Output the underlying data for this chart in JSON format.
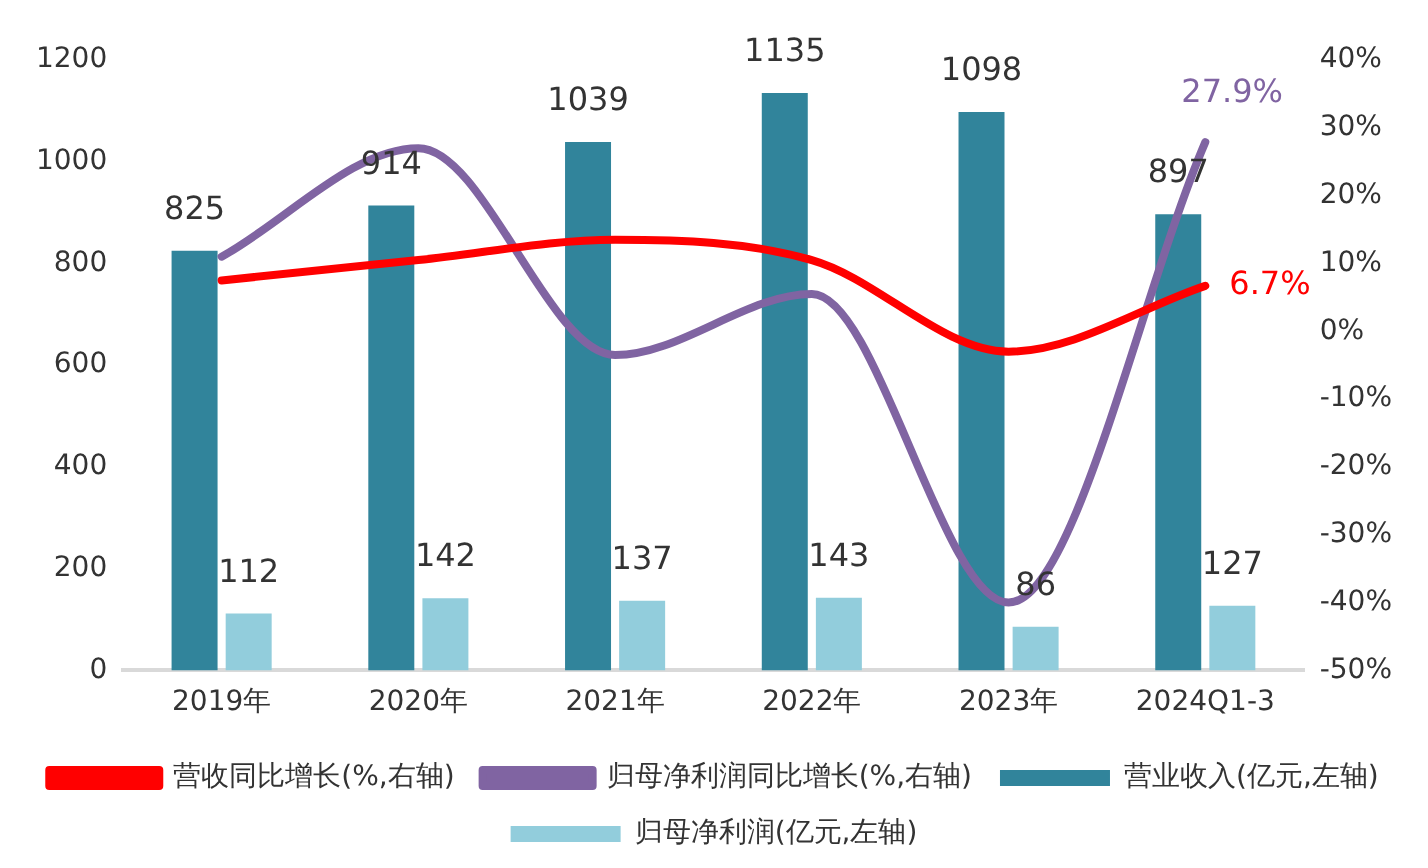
{
  "chart_data": {
    "type": "bar",
    "categories": [
      "2019年",
      "2020年",
      "2021年",
      "2022年",
      "2023年",
      "2024Q1-3"
    ],
    "series": [
      {
        "name": "营业收入(亿元,左轴)",
        "color": "#31849b",
        "values": [
          825,
          914,
          1039,
          1135,
          1098,
          897
        ],
        "value_labels": [
          "825",
          "914",
          "1039",
          "1135",
          "1098",
          "897"
        ]
      },
      {
        "name": "归母净利润(亿元,左轴)",
        "color": "#92cddc",
        "values": [
          112,
          142,
          137,
          143,
          86,
          127
        ],
        "value_labels": [
          "112",
          "142",
          "137",
          "143",
          "86",
          "127"
        ]
      },
      {
        "name": "营收同比增长(%,右轴)",
        "type": "line",
        "axis": "y2",
        "color": "#ff0000",
        "values": [
          7.5,
          10.5,
          13.5,
          10.5,
          -3,
          6.7
        ],
        "value_labels": [
          null,
          null,
          null,
          null,
          null,
          "6.7%"
        ]
      },
      {
        "name": "归母净利润同比增长(%,右轴)",
        "type": "line",
        "axis": "y2",
        "color": "#8064a2",
        "values": [
          11,
          27,
          -3.5,
          5.5,
          -40,
          27.9
        ],
        "value_labels": [
          null,
          null,
          null,
          null,
          null,
          "27.9%"
        ]
      }
    ],
    "ylim": [
      0,
      1200
    ],
    "yticks": [
      0,
      200,
      400,
      600,
      800,
      1000,
      1200
    ],
    "y2lim": [
      -50,
      40
    ],
    "y2ticks": [
      {
        "value": -50,
        "label": "-50%"
      },
      {
        "value": -40,
        "label": "-40%"
      },
      {
        "value": -30,
        "label": "-30%"
      },
      {
        "value": -20,
        "label": "-20%"
      },
      {
        "value": -10,
        "label": "-10%"
      },
      {
        "value": 0,
        "label": "0%"
      },
      {
        "value": 10,
        "label": "10%"
      },
      {
        "value": 20,
        "label": "20%"
      },
      {
        "value": 30,
        "label": "30%"
      },
      {
        "value": 40,
        "label": "40%"
      }
    ],
    "grid": false,
    "legend": "bottom",
    "marker": "none"
  }
}
